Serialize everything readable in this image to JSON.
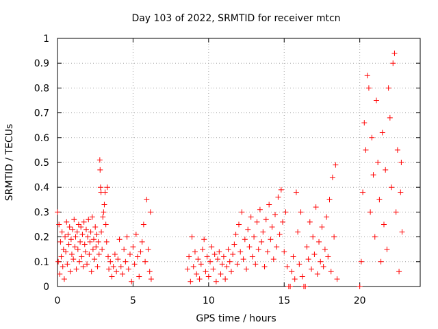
{
  "chart_data": {
    "type": "scatter",
    "title": "Day 103 of 2022, SRMTID for receiver mtcn",
    "xlabel": "GPS time / hours",
    "ylabel": "SRMTID / TECUs",
    "xlim": [
      0,
      24
    ],
    "ylim": [
      0,
      1
    ],
    "x_ticks": [
      {
        "value": 0,
        "label": "0"
      },
      {
        "value": 5,
        "label": "5"
      },
      {
        "value": 10,
        "label": "10"
      },
      {
        "value": 15,
        "label": "15"
      },
      {
        "value": 20,
        "label": "20"
      }
    ],
    "y_ticks": [
      {
        "value": 0,
        "label": "0"
      },
      {
        "value": 0.1,
        "label": "0.1"
      },
      {
        "value": 0.2,
        "label": "0.2"
      },
      {
        "value": 0.3,
        "label": "0.3"
      },
      {
        "value": 0.4,
        "label": "0.4"
      },
      {
        "value": 0.5,
        "label": "0.5"
      },
      {
        "value": 0.6,
        "label": "0.6"
      },
      {
        "value": 0.7,
        "label": "0.7"
      },
      {
        "value": 0.8,
        "label": "0.8"
      },
      {
        "value": 0.9,
        "label": "0.9"
      },
      {
        "value": 1,
        "label": "1"
      }
    ],
    "grid": true,
    "marker": "plus",
    "series_color": "#ff0000",
    "series": [
      {
        "name": "SRMTID",
        "points": [
          [
            0.0,
            0.3
          ],
          [
            0.05,
            0.1
          ],
          [
            0.1,
            0.25
          ],
          [
            0.15,
            0.05
          ],
          [
            0.2,
            0.18
          ],
          [
            0.25,
            0.12
          ],
          [
            0.3,
            0.22
          ],
          [
            0.35,
            0.08
          ],
          [
            0.4,
            0.15
          ],
          [
            0.45,
            0.03
          ],
          [
            0.5,
            0.2
          ],
          [
            0.55,
            0.14
          ],
          [
            0.6,
            0.26
          ],
          [
            0.65,
            0.09
          ],
          [
            0.7,
            0.21
          ],
          [
            0.75,
            0.17
          ],
          [
            0.8,
            0.24
          ],
          [
            0.85,
            0.06
          ],
          [
            0.9,
            0.19
          ],
          [
            0.95,
            0.13
          ],
          [
            1.0,
            0.23
          ],
          [
            1.05,
            0.11
          ],
          [
            1.1,
            0.27
          ],
          [
            1.15,
            0.16
          ],
          [
            1.2,
            0.2
          ],
          [
            1.25,
            0.07
          ],
          [
            1.3,
            0.22
          ],
          [
            1.35,
            0.15
          ],
          [
            1.4,
            0.25
          ],
          [
            1.45,
            0.1
          ],
          [
            1.5,
            0.18
          ],
          [
            1.55,
            0.24
          ],
          [
            1.6,
            0.12
          ],
          [
            1.65,
            0.21
          ],
          [
            1.7,
            0.08
          ],
          [
            1.75,
            0.26
          ],
          [
            1.8,
            0.17
          ],
          [
            1.85,
            0.14
          ],
          [
            1.9,
            0.23
          ],
          [
            1.95,
            0.09
          ],
          [
            2.0,
            0.2
          ],
          [
            2.05,
            0.27
          ],
          [
            2.1,
            0.13
          ],
          [
            2.15,
            0.18
          ],
          [
            2.2,
            0.22
          ],
          [
            2.25,
            0.06
          ],
          [
            2.3,
            0.28
          ],
          [
            2.35,
            0.15
          ],
          [
            2.4,
            0.19
          ],
          [
            2.45,
            0.11
          ],
          [
            2.5,
            0.24
          ],
          [
            2.55,
            0.16
          ],
          [
            2.6,
            0.21
          ],
          [
            2.65,
            0.08
          ],
          [
            2.7,
            0.18
          ],
          [
            2.75,
            0.13
          ],
          [
            2.8,
            0.51
          ],
          [
            2.82,
            0.47
          ],
          [
            2.85,
            0.4
          ],
          [
            2.88,
            0.38
          ],
          [
            2.9,
            0.22
          ],
          [
            2.95,
            0.15
          ],
          [
            3.0,
            0.28
          ],
          [
            3.05,
            0.3
          ],
          [
            3.1,
            0.33
          ],
          [
            3.15,
            0.38
          ],
          [
            3.2,
            0.25
          ],
          [
            3.25,
            0.18
          ],
          [
            3.3,
            0.4
          ],
          [
            3.35,
            0.12
          ],
          [
            3.4,
            0.07
          ],
          [
            3.5,
            0.1
          ],
          [
            3.6,
            0.04
          ],
          [
            3.7,
            0.08
          ],
          [
            3.8,
            0.13
          ],
          [
            3.9,
            0.06
          ],
          [
            4.0,
            0.11
          ],
          [
            4.1,
            0.19
          ],
          [
            4.2,
            0.08
          ],
          [
            4.3,
            0.05
          ],
          [
            4.4,
            0.15
          ],
          [
            4.5,
            0.1
          ],
          [
            4.6,
            0.2
          ],
          [
            4.7,
            0.07
          ],
          [
            4.8,
            0.13
          ],
          [
            4.9,
            0.02
          ],
          [
            5.0,
            0.16
          ],
          [
            5.1,
            0.09
          ],
          [
            5.2,
            0.21
          ],
          [
            5.3,
            0.12
          ],
          [
            5.4,
            0.04
          ],
          [
            5.5,
            0.14
          ],
          [
            5.6,
            0.18
          ],
          [
            5.7,
            0.25
          ],
          [
            5.8,
            0.1
          ],
          [
            5.9,
            0.35
          ],
          [
            6.0,
            0.15
          ],
          [
            6.1,
            0.06
          ],
          [
            6.15,
            0.3
          ],
          [
            6.2,
            0.03
          ],
          [
            8.6,
            0.07
          ],
          [
            8.7,
            0.12
          ],
          [
            8.8,
            0.02
          ],
          [
            8.9,
            0.2
          ],
          [
            9.0,
            0.08
          ],
          [
            9.1,
            0.14
          ],
          [
            9.2,
            0.05
          ],
          [
            9.3,
            0.11
          ],
          [
            9.4,
            0.03
          ],
          [
            9.5,
            0.09
          ],
          [
            9.6,
            0.15
          ],
          [
            9.7,
            0.19
          ],
          [
            9.8,
            0.06
          ],
          [
            9.9,
            0.12
          ],
          [
            10.0,
            0.04
          ],
          [
            10.1,
            0.1
          ],
          [
            10.2,
            0.16
          ],
          [
            10.3,
            0.07
          ],
          [
            10.4,
            0.13
          ],
          [
            10.5,
            0.02
          ],
          [
            10.6,
            0.11
          ],
          [
            10.7,
            0.14
          ],
          [
            10.8,
            0.05
          ],
          [
            10.9,
            0.09
          ],
          [
            11.0,
            0.12
          ],
          [
            11.1,
            0.03
          ],
          [
            11.2,
            0.08
          ],
          [
            11.3,
            0.15
          ],
          [
            11.4,
            0.1
          ],
          [
            11.5,
            0.06
          ],
          [
            11.6,
            0.13
          ],
          [
            11.7,
            0.17
          ],
          [
            11.8,
            0.21
          ],
          [
            11.9,
            0.09
          ],
          [
            12.0,
            0.25
          ],
          [
            12.1,
            0.14
          ],
          [
            12.2,
            0.3
          ],
          [
            12.3,
            0.11
          ],
          [
            12.4,
            0.19
          ],
          [
            12.5,
            0.07
          ],
          [
            12.6,
            0.23
          ],
          [
            12.7,
            0.16
          ],
          [
            12.8,
            0.28
          ],
          [
            12.9,
            0.12
          ],
          [
            13.0,
            0.2
          ],
          [
            13.1,
            0.09
          ],
          [
            13.2,
            0.26
          ],
          [
            13.3,
            0.15
          ],
          [
            13.4,
            0.31
          ],
          [
            13.5,
            0.18
          ],
          [
            13.6,
            0.22
          ],
          [
            13.7,
            0.08
          ],
          [
            13.8,
            0.27
          ],
          [
            13.9,
            0.14
          ],
          [
            14.0,
            0.33
          ],
          [
            14.1,
            0.19
          ],
          [
            14.2,
            0.24
          ],
          [
            14.3,
            0.11
          ],
          [
            14.4,
            0.29
          ],
          [
            14.5,
            0.16
          ],
          [
            14.6,
            0.36
          ],
          [
            14.7,
            0.21
          ],
          [
            14.8,
            0.39
          ],
          [
            14.9,
            0.26
          ],
          [
            15.0,
            0.14
          ],
          [
            15.1,
            0.3
          ],
          [
            15.2,
            0.08
          ],
          [
            15.3,
            0.0
          ],
          [
            15.4,
            0.0
          ],
          [
            15.5,
            0.06
          ],
          [
            15.6,
            0.12
          ],
          [
            15.7,
            0.03
          ],
          [
            15.8,
            0.38
          ],
          [
            15.9,
            0.22
          ],
          [
            16.0,
            0.09
          ],
          [
            16.1,
            0.3
          ],
          [
            16.2,
            0.04
          ],
          [
            16.3,
            0.0
          ],
          [
            16.4,
            0.0
          ],
          [
            16.5,
            0.16
          ],
          [
            16.6,
            0.11
          ],
          [
            16.7,
            0.26
          ],
          [
            16.8,
            0.07
          ],
          [
            16.9,
            0.2
          ],
          [
            17.0,
            0.13
          ],
          [
            17.1,
            0.32
          ],
          [
            17.2,
            0.05
          ],
          [
            17.3,
            0.18
          ],
          [
            17.4,
            0.1
          ],
          [
            17.5,
            0.24
          ],
          [
            17.6,
            0.08
          ],
          [
            17.7,
            0.15
          ],
          [
            17.8,
            0.28
          ],
          [
            17.9,
            0.12
          ],
          [
            18.0,
            0.35
          ],
          [
            18.1,
            0.06
          ],
          [
            18.2,
            0.44
          ],
          [
            18.3,
            0.2
          ],
          [
            18.4,
            0.49
          ],
          [
            18.5,
            0.03
          ],
          [
            20.0,
            0.0
          ],
          [
            20.1,
            0.1
          ],
          [
            20.2,
            0.38
          ],
          [
            20.3,
            0.66
          ],
          [
            20.4,
            0.55
          ],
          [
            20.5,
            0.85
          ],
          [
            20.6,
            0.8
          ],
          [
            20.7,
            0.3
          ],
          [
            20.8,
            0.6
          ],
          [
            20.9,
            0.45
          ],
          [
            21.0,
            0.2
          ],
          [
            21.1,
            0.75
          ],
          [
            21.2,
            0.5
          ],
          [
            21.3,
            0.35
          ],
          [
            21.4,
            0.1
          ],
          [
            21.5,
            0.62
          ],
          [
            21.6,
            0.25
          ],
          [
            21.7,
            0.47
          ],
          [
            21.8,
            0.15
          ],
          [
            21.9,
            0.8
          ],
          [
            22.0,
            0.68
          ],
          [
            22.1,
            0.4
          ],
          [
            22.2,
            0.9
          ],
          [
            22.3,
            0.94
          ],
          [
            22.4,
            0.3
          ],
          [
            22.5,
            0.55
          ],
          [
            22.6,
            0.06
          ],
          [
            22.7,
            0.38
          ],
          [
            22.75,
            0.5
          ],
          [
            22.8,
            0.22
          ]
        ]
      }
    ]
  }
}
